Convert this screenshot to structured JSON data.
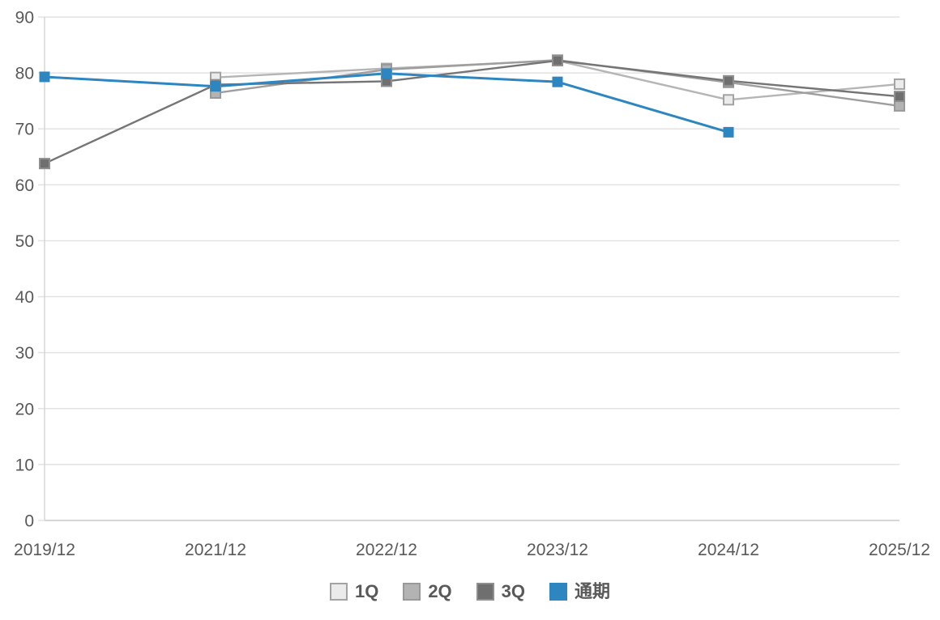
{
  "chart_data": {
    "type": "line",
    "title": "",
    "xlabel": "",
    "ylabel": "",
    "x_labels": [
      "2019/12",
      "2021/12",
      "2022/12",
      "2023/12",
      "2024/12",
      "2025/12"
    ],
    "y_tick_labels": [
      "0",
      "10",
      "20",
      "30",
      "40",
      "50",
      "60",
      "70",
      "80",
      "90"
    ],
    "ylim": [
      0,
      90
    ],
    "y_tick_step": 10,
    "grid": true,
    "legend_position": "bottom",
    "series": [
      {
        "name": "1Q",
        "marker_fill": "#ebebeb",
        "marker_border": "#a3a3a3",
        "line_color": "#b5b5b5",
        "values": [
          null,
          79.2,
          80.8,
          82.2,
          75.2,
          78.0
        ]
      },
      {
        "name": "2Q",
        "marker_fill": "#b3b3b3",
        "marker_border": "#999999",
        "line_color": "#9e9e9e",
        "values": [
          null,
          76.4,
          80.6,
          82.3,
          78.3,
          74.1
        ]
      },
      {
        "name": "3Q",
        "marker_fill": "#6f6f6f",
        "marker_border": "#8f8f8f",
        "line_color": "#757575",
        "values": [
          63.8,
          77.9,
          78.5,
          82.2,
          78.6,
          75.8
        ]
      },
      {
        "name": "通期",
        "marker_fill": "#2e86c1",
        "marker_border": "#2e86c1",
        "line_color": "#2e86c1",
        "values": [
          79.3,
          77.6,
          79.9,
          78.4,
          69.4,
          null
        ]
      }
    ],
    "colors": {
      "grid_line": "#e2e2e2",
      "zero_line": "#c9c9c9",
      "axis_line": "#d6d6d6",
      "tick_label": "#595959",
      "legend_text": "#595959",
      "background": "#ffffff"
    }
  }
}
